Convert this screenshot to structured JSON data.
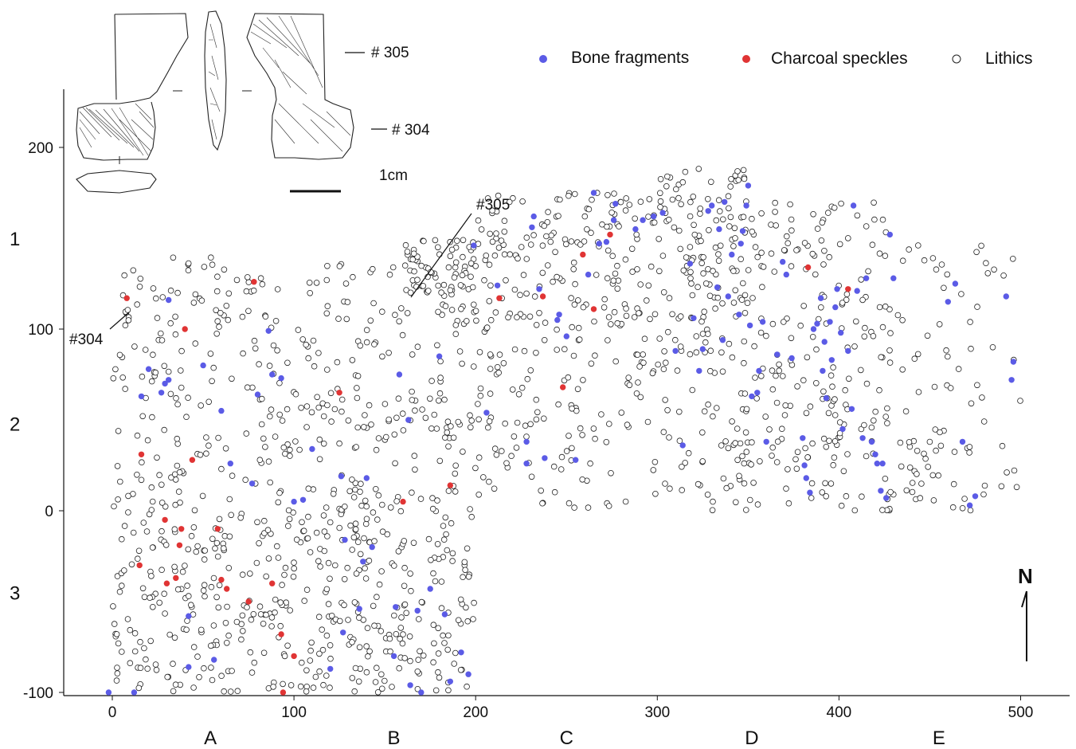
{
  "chart_data": {
    "type": "scatter",
    "title": "",
    "xlabel": "",
    "ylabel": "",
    "xlim": [
      -10,
      530
    ],
    "ylim": [
      -100,
      235
    ],
    "x_ticks": [
      0,
      100,
      200,
      300,
      400,
      500
    ],
    "y_ticks": [
      -100,
      0,
      100,
      200
    ],
    "x_zone_labels": [
      {
        "label": "A",
        "x": 54
      },
      {
        "label": "B",
        "x": 155
      },
      {
        "label": "C",
        "x": 250
      },
      {
        "label": "D",
        "x": 352
      },
      {
        "label": "E",
        "x": 455
      }
    ],
    "y_zone_labels": [
      {
        "label": "1",
        "y": 150
      },
      {
        "label": "2",
        "y": 48
      },
      {
        "label": "3",
        "y": -45
      }
    ],
    "legend": {
      "position": "top-right",
      "entries": [
        "Bone fragments",
        "Charcoal speckles",
        "Lithics"
      ]
    },
    "series": [
      {
        "name": "Bone fragments",
        "color": "#5b5be6",
        "marker": "filled-circle",
        "points": [
          [
            16,
            63
          ],
          [
            20,
            78
          ],
          [
            27,
            65
          ],
          [
            29,
            70
          ],
          [
            31,
            72
          ],
          [
            31,
            116
          ],
          [
            50,
            80
          ],
          [
            60,
            55
          ],
          [
            65,
            26
          ],
          [
            77,
            15
          ],
          [
            80,
            64
          ],
          [
            86,
            99
          ],
          [
            88,
            75
          ],
          [
            93,
            73
          ],
          [
            100,
            5
          ],
          [
            105,
            6
          ],
          [
            110,
            34
          ],
          [
            126,
            19
          ],
          [
            140,
            18
          ],
          [
            158,
            75
          ],
          [
            163,
            50
          ],
          [
            180,
            85
          ],
          [
            199,
            146
          ],
          [
            206,
            54
          ],
          [
            212,
            124
          ],
          [
            228,
            26
          ],
          [
            228,
            38
          ],
          [
            231,
            156
          ],
          [
            232,
            162
          ],
          [
            235,
            122
          ],
          [
            238,
            29
          ],
          [
            245,
            105
          ],
          [
            246,
            108
          ],
          [
            250,
            96
          ],
          [
            255,
            28
          ],
          [
            262,
            130
          ],
          [
            265,
            175
          ],
          [
            268,
            147
          ],
          [
            272,
            148
          ],
          [
            276,
            160
          ],
          [
            277,
            169
          ],
          [
            288,
            155
          ],
          [
            292,
            160
          ],
          [
            298,
            162
          ],
          [
            303,
            164
          ],
          [
            310,
            88
          ],
          [
            314,
            36
          ],
          [
            318,
            136
          ],
          [
            320,
            106
          ],
          [
            323,
            77
          ],
          [
            325,
            89
          ],
          [
            328,
            165
          ],
          [
            330,
            168
          ],
          [
            333,
            123
          ],
          [
            334,
            155
          ],
          [
            336,
            94
          ],
          [
            337,
            170
          ],
          [
            339,
            118
          ],
          [
            341,
            141
          ],
          [
            345,
            108
          ],
          [
            346,
            147
          ],
          [
            347,
            154
          ],
          [
            349,
            168
          ],
          [
            350,
            179
          ],
          [
            351,
            102
          ],
          [
            352,
            63
          ],
          [
            355,
            65
          ],
          [
            356,
            77
          ],
          [
            358,
            104
          ],
          [
            360,
            38
          ],
          [
            366,
            86
          ],
          [
            369,
            137
          ],
          [
            371,
            130
          ],
          [
            374,
            84
          ],
          [
            380,
            40
          ],
          [
            381,
            25
          ],
          [
            382,
            18
          ],
          [
            384,
            10
          ],
          [
            386,
            100
          ],
          [
            388,
            103
          ],
          [
            390,
            117
          ],
          [
            391,
            77
          ],
          [
            392,
            93
          ],
          [
            393,
            62
          ],
          [
            395,
            104
          ],
          [
            396,
            83
          ],
          [
            398,
            112
          ],
          [
            399,
            122
          ],
          [
            401,
            98
          ],
          [
            402,
            45
          ],
          [
            405,
            88
          ],
          [
            407,
            56
          ],
          [
            408,
            168
          ],
          [
            410,
            121
          ],
          [
            413,
            40
          ],
          [
            415,
            128
          ],
          [
            418,
            38
          ],
          [
            420,
            31
          ],
          [
            421,
            26
          ],
          [
            423,
            11
          ],
          [
            424,
            26
          ],
          [
            426,
            7
          ],
          [
            428,
            152
          ],
          [
            430,
            128
          ],
          [
            460,
            115
          ],
          [
            464,
            125
          ],
          [
            468,
            38
          ],
          [
            472,
            3
          ],
          [
            475,
            8
          ],
          [
            492,
            118
          ],
          [
            495,
            72
          ],
          [
            496,
            82
          ],
          [
            -2,
            -100
          ],
          [
            12,
            -100
          ],
          [
            42,
            -86
          ],
          [
            56,
            -82
          ],
          [
            120,
            -87
          ],
          [
            127,
            -67
          ],
          [
            136,
            -54
          ],
          [
            155,
            -80
          ],
          [
            164,
            -96
          ],
          [
            170,
            -100
          ],
          [
            175,
            -43
          ],
          [
            183,
            -57
          ],
          [
            186,
            -94
          ],
          [
            192,
            -78
          ],
          [
            196,
            -90
          ],
          [
            42,
            -58
          ],
          [
            138,
            -28
          ],
          [
            143,
            -20
          ],
          [
            128,
            -16
          ],
          [
            156,
            -53
          ],
          [
            168,
            -55
          ]
        ]
      },
      {
        "name": "Charcoal speckles",
        "color": "#e03434",
        "marker": "filled-circle",
        "points": [
          [
            8,
            117
          ],
          [
            16,
            31
          ],
          [
            15,
            -30
          ],
          [
            29,
            -5
          ],
          [
            30,
            -40
          ],
          [
            35,
            -37
          ],
          [
            37,
            -19
          ],
          [
            38,
            -10
          ],
          [
            40,
            100
          ],
          [
            44,
            28
          ],
          [
            58,
            -10
          ],
          [
            60,
            -38
          ],
          [
            63,
            -43
          ],
          [
            75,
            -50
          ],
          [
            78,
            126
          ],
          [
            88,
            -40
          ],
          [
            93,
            -68
          ],
          [
            100,
            -80
          ],
          [
            94,
            -100
          ],
          [
            125,
            65
          ],
          [
            160,
            5
          ],
          [
            186,
            14
          ],
          [
            213,
            117
          ],
          [
            237,
            118
          ],
          [
            248,
            68
          ],
          [
            259,
            141
          ],
          [
            265,
            111
          ],
          [
            274,
            152
          ],
          [
            383,
            134
          ],
          [
            405,
            122
          ]
        ]
      },
      {
        "name": "Lithics",
        "color": "#ffffff",
        "stroke": "#222222",
        "marker": "open-circle",
        "region_fill": "dense scatter across x 0–500; y -100–140 for x < 200, y 0–190 for x 200–500"
      }
    ]
  },
  "annotations": {
    "label_304": "#304",
    "label_305": "#305",
    "sketch_label_305": "# 305",
    "sketch_label_304": "# 304",
    "scale_label": "1cm",
    "north_label": "N"
  }
}
